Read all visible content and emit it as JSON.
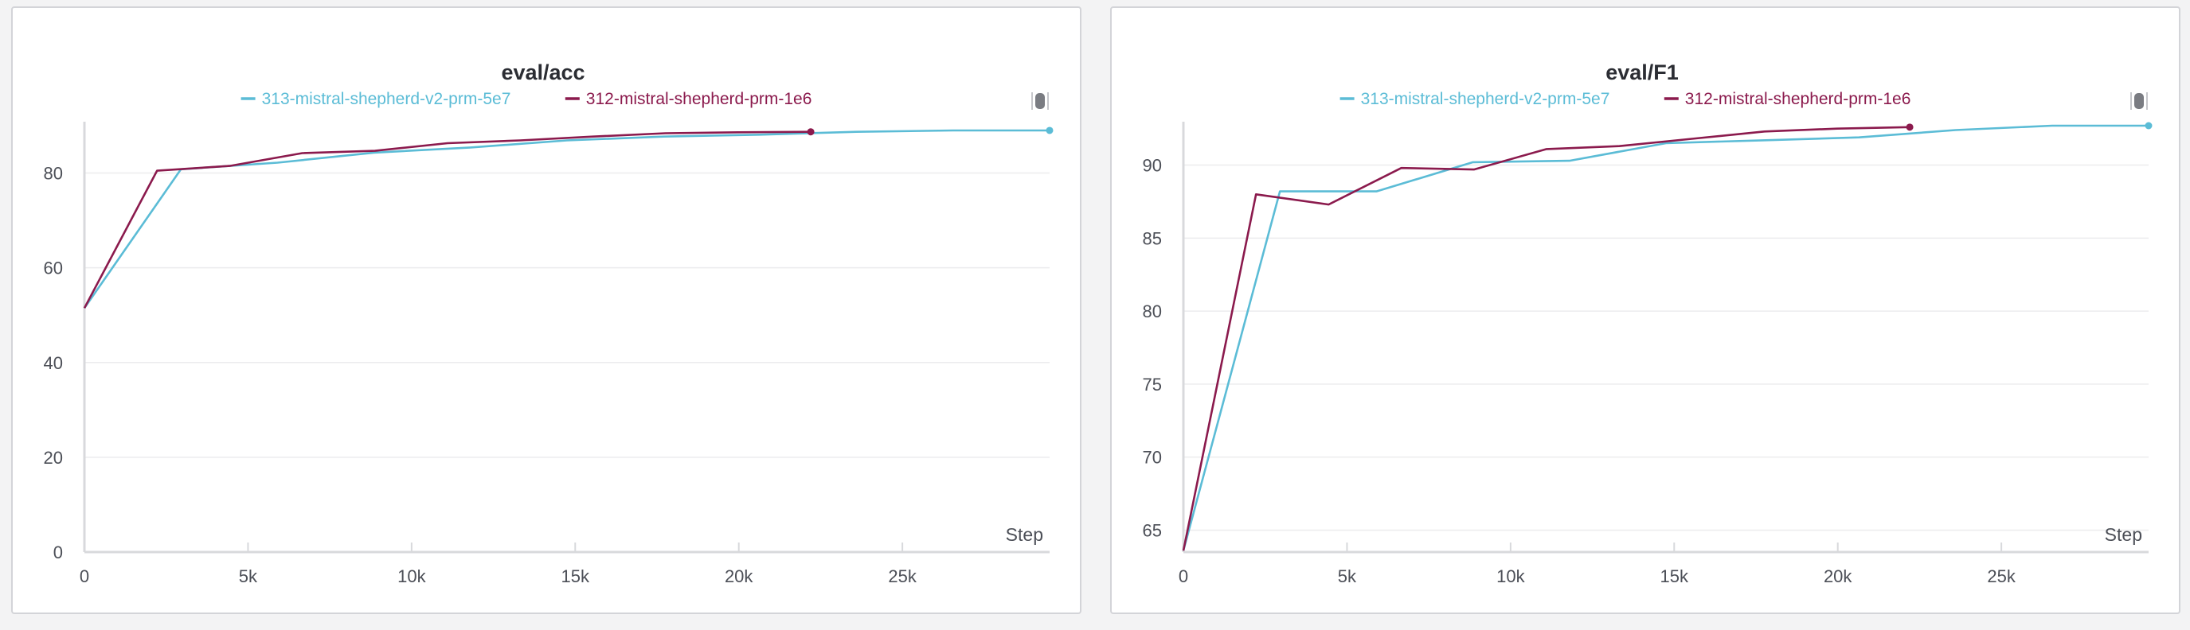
{
  "chart_data": [
    {
      "type": "line",
      "title": "eval/acc",
      "xlabel": "Step",
      "ylabel": "",
      "xlim": [
        0,
        29500
      ],
      "ylim": [
        0,
        90
      ],
      "xticks": [
        0,
        5000,
        10000,
        15000,
        20000,
        25000
      ],
      "xtick_labels": [
        "0",
        "5k",
        "10k",
        "15k",
        "20k",
        "25k"
      ],
      "yticks": [
        0,
        20,
        40,
        60,
        80
      ],
      "ytick_labels": [
        "0",
        "20",
        "40",
        "60",
        "80"
      ],
      "grid": true,
      "legend_position": "top-center",
      "series": [
        {
          "name": "313-mistral-shepherd-v2-prm-5e7",
          "color": "#5bbcd6",
          "x": [
            0,
            2950,
            5900,
            8850,
            11800,
            14750,
            17700,
            20650,
            23600,
            26550,
            29500
          ],
          "y": [
            51.5,
            80.8,
            82.2,
            84.3,
            85.4,
            86.9,
            87.7,
            88.1,
            88.7,
            89.0,
            89.0
          ]
        },
        {
          "name": "312-mistral-shepherd-prm-1e6",
          "color": "#8b1a4d",
          "x": [
            0,
            2220,
            4440,
            6660,
            8880,
            11100,
            13320,
            15540,
            17760,
            19980,
            22200
          ],
          "y": [
            51.5,
            80.5,
            81.5,
            84.2,
            84.7,
            86.3,
            86.9,
            87.7,
            88.4,
            88.6,
            88.7
          ]
        }
      ]
    },
    {
      "type": "line",
      "title": "eval/F1",
      "xlabel": "Step",
      "ylabel": "",
      "xlim": [
        0,
        29500
      ],
      "ylim": [
        63.5,
        92.7
      ],
      "xticks": [
        0,
        5000,
        10000,
        15000,
        20000,
        25000
      ],
      "xtick_labels": [
        "0",
        "5k",
        "10k",
        "15k",
        "20k",
        "25k"
      ],
      "yticks": [
        65,
        70,
        75,
        80,
        85,
        90
      ],
      "ytick_labels": [
        "65",
        "70",
        "75",
        "80",
        "85",
        "90"
      ],
      "grid": true,
      "legend_position": "top-center",
      "series": [
        {
          "name": "313-mistral-shepherd-v2-prm-5e7",
          "color": "#5bbcd6",
          "x": [
            0,
            2950,
            5900,
            8850,
            11800,
            14750,
            17700,
            20650,
            23600,
            26550,
            29500
          ],
          "y": [
            63.6,
            88.2,
            88.2,
            90.2,
            90.3,
            91.5,
            91.7,
            91.9,
            92.4,
            92.7,
            92.7
          ]
        },
        {
          "name": "312-mistral-shepherd-prm-1e6",
          "color": "#8b1a4d",
          "x": [
            0,
            2220,
            4440,
            6660,
            8880,
            11100,
            13320,
            15540,
            17760,
            19980,
            22200
          ],
          "y": [
            63.6,
            88.0,
            87.3,
            89.8,
            89.7,
            91.1,
            91.3,
            91.8,
            92.3,
            92.5,
            92.6
          ]
        }
      ]
    }
  ]
}
